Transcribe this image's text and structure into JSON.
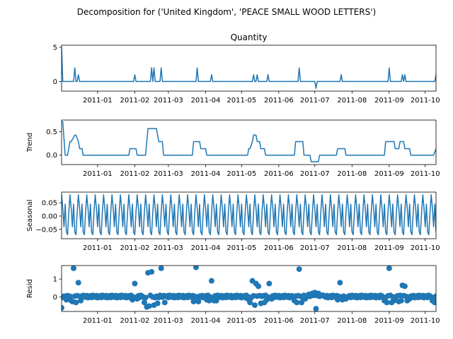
{
  "figure": {
    "title": "Decomposition for ('United Kingdom', 'PEACE SMALL WOOD LETTERS')",
    "line_color": "#1f77b4",
    "zero_line_color": "#000000"
  },
  "chart_data": [
    {
      "type": "line",
      "title": "Quantity",
      "ylabel": "",
      "xlim": [
        "2010-12-02",
        "2011-10-10"
      ],
      "ylim": [
        -1.4,
        5.3
      ],
      "yticks": [
        0,
        5
      ],
      "xticks": [
        "2011-01-01",
        "2011-02-01",
        "2011-03-01",
        "2011-04-01",
        "2011-05-01",
        "2011-06-01",
        "2011-07-01",
        "2011-08-01",
        "2011-09-01",
        "2011-10-01"
      ],
      "xticklabels": [
        "2011-01",
        "2011-02",
        "2011-03",
        "2011-04",
        "2011-05",
        "2011-06",
        "2011-07",
        "2011-08",
        "2011-09",
        "2011-10"
      ],
      "x": [
        "2010-12-02",
        "2010-12-03",
        "2010-12-12",
        "2010-12-13",
        "2010-12-14",
        "2010-12-15",
        "2010-12-16",
        "2010-12-17",
        "2010-12-18",
        "2011-01-31",
        "2011-02-01",
        "2011-02-02",
        "2011-02-14",
        "2011-02-15",
        "2011-02-16",
        "2011-02-17",
        "2011-02-18",
        "2011-02-22",
        "2011-02-23",
        "2011-02-24",
        "2011-03-24",
        "2011-03-25",
        "2011-03-26",
        "2011-04-05",
        "2011-04-06",
        "2011-04-07",
        "2011-05-10",
        "2011-05-11",
        "2011-05-12",
        "2011-05-13",
        "2011-05-14",
        "2011-05-15",
        "2011-05-16",
        "2011-05-22",
        "2011-05-23",
        "2011-05-24",
        "2011-06-17",
        "2011-06-18",
        "2011-06-19",
        "2011-07-01",
        "2011-07-02",
        "2011-07-03",
        "2011-07-22",
        "2011-07-23",
        "2011-07-24",
        "2011-08-31",
        "2011-09-01",
        "2011-09-02",
        "2011-09-11",
        "2011-09-12",
        "2011-09-13",
        "2011-09-14",
        "2011-09-15",
        "2011-09-16",
        "2011-10-09",
        "2011-10-10"
      ],
      "series": [
        {
          "values": [
            5,
            0,
            0,
            2,
            0,
            0,
            1,
            0,
            0,
            0,
            1,
            0,
            0,
            2,
            0,
            2,
            0,
            0,
            2,
            0,
            0,
            2,
            0,
            0,
            1,
            0,
            0,
            1,
            0,
            0,
            1,
            0,
            0,
            0,
            1,
            0,
            0,
            2,
            0,
            0,
            -1,
            0,
            0,
            1,
            0,
            0,
            2,
            0,
            0,
            1,
            0,
            1,
            0,
            0,
            0,
            1
          ]
        }
      ]
    },
    {
      "type": "line",
      "title": "",
      "ylabel": "Trend",
      "xlim": [
        "2010-12-02",
        "2011-10-10"
      ],
      "ylim": [
        -0.2,
        0.75
      ],
      "yticks": [
        0.0,
        0.5
      ],
      "ytickformat": 1,
      "xticks": [
        "2011-01-01",
        "2011-02-01",
        "2011-03-01",
        "2011-04-01",
        "2011-05-01",
        "2011-06-01",
        "2011-07-01",
        "2011-08-01",
        "2011-09-01",
        "2011-10-01"
      ],
      "xticklabels": [
        "2011-01",
        "2011-02",
        "2011-03",
        "2011-04",
        "2011-05",
        "2011-06",
        "2011-07",
        "2011-08",
        "2011-09",
        "2011-10"
      ],
      "x": [
        "2010-12-02",
        "2010-12-03",
        "2010-12-05",
        "2010-12-07",
        "2010-12-09",
        "2010-12-10",
        "2010-12-13",
        "2010-12-14",
        "2010-12-16",
        "2010-12-17",
        "2010-12-19",
        "2010-12-20",
        "2011-01-27",
        "2011-01-28",
        "2011-02-02",
        "2011-02-03",
        "2011-02-10",
        "2011-02-11",
        "2011-02-12",
        "2011-02-14",
        "2011-02-19",
        "2011-02-20",
        "2011-02-21",
        "2011-02-24",
        "2011-02-25",
        "2011-03-21",
        "2011-03-22",
        "2011-03-27",
        "2011-03-28",
        "2011-04-01",
        "2011-04-02",
        "2011-04-07",
        "2011-04-08",
        "2011-05-06",
        "2011-05-07",
        "2011-05-08",
        "2011-05-10",
        "2011-05-11",
        "2011-05-13",
        "2011-05-14",
        "2011-05-16",
        "2011-05-17",
        "2011-05-20",
        "2011-05-21",
        "2011-05-26",
        "2011-05-27",
        "2011-06-14",
        "2011-06-15",
        "2011-06-21",
        "2011-06-22",
        "2011-06-27",
        "2011-06-28",
        "2011-07-04",
        "2011-07-05",
        "2011-07-19",
        "2011-07-20",
        "2011-07-26",
        "2011-07-27",
        "2011-08-28",
        "2011-08-29",
        "2011-09-05",
        "2011-09-06",
        "2011-09-09",
        "2011-09-10",
        "2011-09-13",
        "2011-09-14",
        "2011-09-18",
        "2011-09-19",
        "2011-10-08",
        "2011-10-10"
      ],
      "series": [
        {
          "values": [
            0.71,
            0.71,
            0.0,
            0.0,
            0.29,
            0.29,
            0.43,
            0.43,
            0.29,
            0.14,
            0.14,
            0.0,
            0.0,
            0.14,
            0.14,
            0.0,
            0.0,
            0.29,
            0.57,
            0.57,
            0.57,
            0.43,
            0.29,
            0.29,
            0.0,
            0.0,
            0.29,
            0.29,
            0.14,
            0.14,
            0.0,
            0.0,
            0.0,
            0.0,
            0.14,
            0.14,
            0.29,
            0.43,
            0.43,
            0.29,
            0.29,
            0.14,
            0.14,
            0.0,
            0.0,
            0.0,
            0.0,
            0.29,
            0.29,
            0.0,
            0.0,
            -0.14,
            -0.14,
            0.0,
            0.0,
            0.14,
            0.14,
            0.0,
            0.0,
            0.29,
            0.29,
            0.14,
            0.14,
            0.29,
            0.29,
            0.14,
            0.14,
            0.0,
            0.0,
            0.14
          ]
        }
      ]
    },
    {
      "type": "line",
      "title": "",
      "ylabel": "Seasonal",
      "xlim": [
        "2010-12-02",
        "2011-10-10"
      ],
      "ylim": [
        -0.085,
        0.09
      ],
      "yticks": [
        -0.05,
        0.0,
        0.05
      ],
      "ytickformat": 2,
      "xticks": [
        "2011-01-01",
        "2011-02-01",
        "2011-03-01",
        "2011-04-01",
        "2011-05-01",
        "2011-06-01",
        "2011-07-01",
        "2011-08-01",
        "2011-09-01",
        "2011-10-01"
      ],
      "xticklabels": [
        "2011-01",
        "2011-02",
        "2011-03",
        "2011-04",
        "2011-05",
        "2011-06",
        "2011-07",
        "2011-08",
        "2011-09",
        "2011-10"
      ],
      "period": 7,
      "pattern": [
        0.08,
        0.03,
        -0.04,
        0.045,
        -0.06,
        -0.07,
        0.015
      ],
      "start": "2010-12-02",
      "end": "2011-10-10"
    },
    {
      "type": "scatter",
      "title": "",
      "ylabel": "Resid",
      "xlim": [
        "2010-12-02",
        "2011-10-10"
      ],
      "ylim": [
        -0.8,
        1.75
      ],
      "yticks": [
        0,
        1
      ],
      "xticks": [
        "2011-01-01",
        "2011-02-01",
        "2011-03-01",
        "2011-04-01",
        "2011-05-01",
        "2011-06-01",
        "2011-07-01",
        "2011-08-01",
        "2011-09-01",
        "2011-10-01"
      ],
      "xticklabels": [
        "2011-01",
        "2011-02",
        "2011-03",
        "2011-04",
        "2011-05",
        "2011-06",
        "2011-07",
        "2011-08",
        "2011-09",
        "2011-10"
      ],
      "zero_line": true,
      "baseline": 0.03,
      "noise": [
        0.04,
        -0.05,
        0.06,
        0.02,
        -0.03,
        0.05,
        -0.06,
        0.01
      ],
      "start": "2010-12-02",
      "end": "2011-10-10",
      "outliers": [
        {
          "x": "2010-12-02",
          "y": -0.6
        },
        {
          "x": "2010-12-04",
          "y": 0.05
        },
        {
          "x": "2010-12-06",
          "y": -0.15
        },
        {
          "x": "2010-12-10",
          "y": -0.2
        },
        {
          "x": "2010-12-11",
          "y": -0.25
        },
        {
          "x": "2010-12-12",
          "y": 1.6
        },
        {
          "x": "2010-12-14",
          "y": -0.3
        },
        {
          "x": "2010-12-16",
          "y": 0.8
        },
        {
          "x": "2010-12-18",
          "y": -0.2
        },
        {
          "x": "2011-01-30",
          "y": -0.15
        },
        {
          "x": "2011-02-01",
          "y": 0.75
        },
        {
          "x": "2011-02-03",
          "y": -0.1
        },
        {
          "x": "2011-02-09",
          "y": -0.3
        },
        {
          "x": "2011-02-11",
          "y": -0.55
        },
        {
          "x": "2011-02-12",
          "y": 1.35
        },
        {
          "x": "2011-02-13",
          "y": -0.5
        },
        {
          "x": "2011-02-15",
          "y": 1.4
        },
        {
          "x": "2011-02-17",
          "y": -0.45
        },
        {
          "x": "2011-02-20",
          "y": -0.35
        },
        {
          "x": "2011-02-23",
          "y": 1.6
        },
        {
          "x": "2011-02-26",
          "y": -0.3
        },
        {
          "x": "2011-03-22",
          "y": -0.25
        },
        {
          "x": "2011-03-24",
          "y": 1.65
        },
        {
          "x": "2011-03-26",
          "y": -0.25
        },
        {
          "x": "2011-04-02",
          "y": -0.15
        },
        {
          "x": "2011-04-04",
          "y": -0.2
        },
        {
          "x": "2011-04-06",
          "y": 0.9
        },
        {
          "x": "2011-04-08",
          "y": -0.2
        },
        {
          "x": "2011-04-10",
          "y": -0.2
        },
        {
          "x": "2011-05-06",
          "y": -0.1
        },
        {
          "x": "2011-05-08",
          "y": -0.3
        },
        {
          "x": "2011-05-10",
          "y": 0.9
        },
        {
          "x": "2011-05-12",
          "y": -0.45
        },
        {
          "x": "2011-05-13",
          "y": 0.75
        },
        {
          "x": "2011-05-15",
          "y": 0.6
        },
        {
          "x": "2011-05-17",
          "y": -0.35
        },
        {
          "x": "2011-05-20",
          "y": -0.3
        },
        {
          "x": "2011-05-22",
          "y": -0.15
        },
        {
          "x": "2011-05-24",
          "y": 0.75
        },
        {
          "x": "2011-05-26",
          "y": -0.1
        },
        {
          "x": "2011-06-14",
          "y": -0.2
        },
        {
          "x": "2011-06-16",
          "y": -0.3
        },
        {
          "x": "2011-06-18",
          "y": 1.55
        },
        {
          "x": "2011-06-20",
          "y": -0.3
        },
        {
          "x": "2011-06-23",
          "y": -0.1
        },
        {
          "x": "2011-06-26",
          "y": 0.15
        },
        {
          "x": "2011-06-29",
          "y": 0.2
        },
        {
          "x": "2011-07-01",
          "y": 0.25
        },
        {
          "x": "2011-07-02",
          "y": -0.65
        },
        {
          "x": "2011-07-04",
          "y": 0.2
        },
        {
          "x": "2011-07-07",
          "y": 0.1
        },
        {
          "x": "2011-07-20",
          "y": -0.15
        },
        {
          "x": "2011-07-22",
          "y": 0.8
        },
        {
          "x": "2011-07-24",
          "y": -0.15
        },
        {
          "x": "2011-07-27",
          "y": -0.1
        },
        {
          "x": "2011-08-28",
          "y": -0.2
        },
        {
          "x": "2011-08-30",
          "y": -0.3
        },
        {
          "x": "2011-09-01",
          "y": 1.6
        },
        {
          "x": "2011-09-03",
          "y": -0.3
        },
        {
          "x": "2011-09-05",
          "y": -0.2
        },
        {
          "x": "2011-09-09",
          "y": -0.25
        },
        {
          "x": "2011-09-11",
          "y": -0.2
        },
        {
          "x": "2011-09-12",
          "y": 0.65
        },
        {
          "x": "2011-09-14",
          "y": 0.6
        },
        {
          "x": "2011-09-16",
          "y": -0.2
        },
        {
          "x": "2011-09-18",
          "y": -0.1
        },
        {
          "x": "2011-10-07",
          "y": -0.2
        },
        {
          "x": "2011-10-09",
          "y": -0.3
        },
        {
          "x": "2011-10-10",
          "y": 0.05
        }
      ]
    }
  ]
}
